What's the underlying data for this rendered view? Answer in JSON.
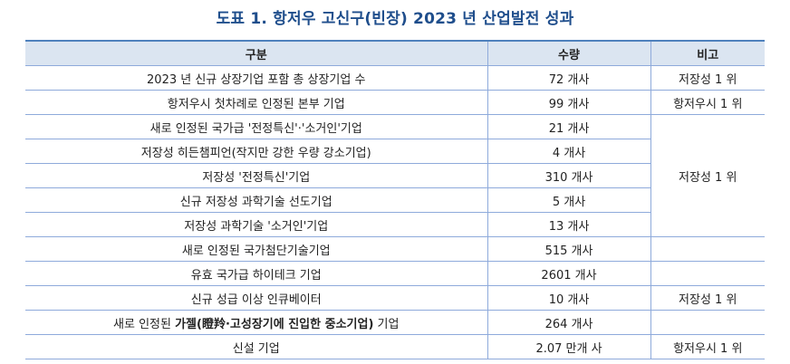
{
  "title": "도표 1. 항저우 고신구(빈장) 2023 년 산업발전 성과",
  "table": {
    "headers": [
      "구분",
      "수량",
      "비고"
    ],
    "rows": [
      {
        "item": "2023 년 신규 상장기업 포함 총 상장기업 수",
        "count": "72 개사",
        "note": "저장성 1 위"
      },
      {
        "item": "항저우시 첫차례로 인정된 본부 기업",
        "count": "99 개사",
        "note": "항저우시 1 위"
      },
      {
        "item": "새로 인정된 국가급 '전정특신'·'소거인'기업",
        "count": "21 개사",
        "note": ""
      },
      {
        "item": "저장성 히든챔피언(작지만 강한 우량 강소기업)",
        "count": "4 개사",
        "note": "저장성 1 위"
      },
      {
        "item": "저장성 '전정특신'기업",
        "count": "310 개사",
        "note": ""
      },
      {
        "item": "신규 저장성 과학기술 선도기업",
        "count": "5 개사",
        "note": ""
      },
      {
        "item": "저장성 과학기술 '소거인'기업",
        "count": "13 개사",
        "note": ""
      },
      {
        "item": "새로 인정된 국가첨단기술기업",
        "count": "515 개사",
        "note": ""
      },
      {
        "item": "유효 국가급 하이테크 기업",
        "count": "2601 개사",
        "note": ""
      },
      {
        "item": "신규 성급 이상 인큐베이터",
        "count": "10 개사",
        "note": "저장성 1 위"
      },
      {
        "item_prefix": "새로 인정된 ",
        "item_bold": "가젤(瞪羚·고성장기에 진입한 중소기업)",
        "item_suffix": " 기업",
        "count": "264 개사",
        "note": ""
      },
      {
        "item": "신설 기업",
        "count": "2.07 만개 사",
        "note": "항저우시 1 위"
      }
    ]
  }
}
